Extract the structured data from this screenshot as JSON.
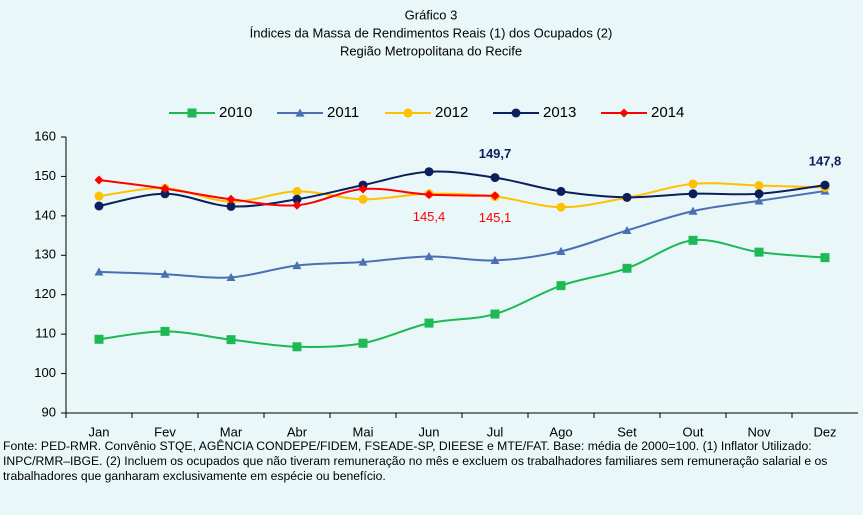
{
  "chart_data": {
    "type": "line",
    "title": "Gráfico 3",
    "subtitle": [
      "Índices da Massa de Rendimentos Reais (1) dos Ocupados (2)",
      "Região Metropolitana do Recife"
    ],
    "categories": [
      "Jan",
      "Fev",
      "Mar",
      "Abr",
      "Mai",
      "Jun",
      "Jul",
      "Ago",
      "Set",
      "Out",
      "Nov",
      "Dez"
    ],
    "series": [
      {
        "name": "2010",
        "color": "#1db954",
        "marker": "square",
        "values": [
          108.7,
          110.7,
          108.6,
          106.8,
          107.7,
          112.8,
          115.1,
          122.3,
          126.7,
          133.8,
          130.8,
          129.4
        ]
      },
      {
        "name": "2011",
        "color": "#4a6fb5",
        "marker": "triangle",
        "values": [
          125.8,
          125.2,
          124.4,
          127.4,
          128.3,
          129.7,
          128.7,
          131.0,
          136.3,
          141.2,
          143.8,
          146.3
        ]
      },
      {
        "name": "2012",
        "color": "#ffc000",
        "marker": "circle",
        "values": [
          145.0,
          147.0,
          143.6,
          146.2,
          144.2,
          145.6,
          144.9,
          142.2,
          144.6,
          148.1,
          147.7,
          147.2
        ]
      },
      {
        "name": "2013",
        "color": "#0b1f5c",
        "marker": "circle",
        "values": [
          142.5,
          145.6,
          142.4,
          144.2,
          147.8,
          151.2,
          149.7,
          146.2,
          144.7,
          145.6,
          145.6,
          147.8
        ],
        "value_labels": [
          null,
          null,
          null,
          null,
          null,
          null,
          "149,7",
          null,
          null,
          null,
          null,
          "147,8"
        ],
        "label_color": "#0b1f5c"
      },
      {
        "name": "2014",
        "color": "#ff0000",
        "marker": "diamond",
        "values": [
          149.1,
          146.9,
          144.2,
          142.7,
          146.8,
          145.4,
          145.1,
          null,
          null,
          null,
          null,
          null
        ],
        "value_labels": [
          null,
          null,
          null,
          null,
          null,
          "145,4",
          "145,1",
          null,
          null,
          null,
          null,
          null
        ],
        "label_color": "#ff0000"
      }
    ],
    "ylim": [
      90,
      160
    ],
    "yticks": [
      90,
      100,
      110,
      120,
      130,
      140,
      150,
      160
    ],
    "grid": false,
    "legend": "top",
    "note": "Fonte: PED-RMR. Convênio STQE, AGÊNCIA CONDEPE/FIDEM, FSEADE-SP, DIEESE e MTE/FAT. Base: média de 2000=100. (1) Inflator Utilizado: INPC/RMR–IBGE. (2) Incluem os ocupados que não tiveram remuneração no mês e excluem os trabalhadores familiares sem remuneração salarial e os trabalhadores que ganharam exclusivamente em espécie ou benefício."
  }
}
